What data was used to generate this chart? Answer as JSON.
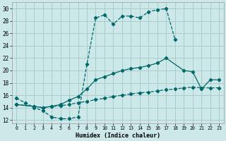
{
  "xlabel": "Humidex (Indice chaleur)",
  "bg_color": "#cce8e8",
  "grid_color": "#aacccc",
  "line_color": "#006868",
  "xlim": [
    -0.5,
    23.5
  ],
  "ylim": [
    11.5,
    31.0
  ],
  "xticks": [
    0,
    1,
    2,
    3,
    4,
    5,
    6,
    7,
    8,
    9,
    10,
    11,
    12,
    13,
    14,
    15,
    16,
    17,
    18,
    19,
    20,
    21,
    22,
    23
  ],
  "yticks": [
    12,
    14,
    16,
    18,
    20,
    22,
    24,
    26,
    28,
    30
  ],
  "curve1_x": [
    0,
    1,
    2,
    3,
    4,
    5,
    6,
    7,
    8,
    9,
    10,
    11,
    12,
    13,
    14,
    15,
    16,
    17,
    18
  ],
  "curve1_y": [
    15.5,
    14.8,
    14.0,
    13.5,
    12.5,
    12.2,
    12.2,
    12.5,
    21.0,
    28.5,
    29.0,
    27.5,
    28.8,
    28.8,
    28.5,
    29.5,
    29.8,
    30.0,
    25.0
  ],
  "curve2_x": [
    0,
    2,
    3,
    4,
    5,
    6,
    7,
    8,
    9,
    10,
    11,
    12,
    13,
    14,
    15,
    16,
    17,
    19,
    20,
    21,
    22,
    23
  ],
  "curve2_y": [
    14.5,
    14.2,
    14.0,
    14.2,
    14.5,
    15.2,
    15.8,
    17.0,
    18.5,
    19.0,
    19.5,
    20.0,
    20.3,
    20.5,
    20.8,
    21.2,
    22.0,
    20.0,
    19.8,
    17.0,
    18.5,
    18.5
  ],
  "curve3_x": [
    0,
    2,
    3,
    4,
    5,
    6,
    7,
    8,
    9,
    10,
    11,
    12,
    13,
    14,
    15,
    16,
    17,
    18,
    19,
    20,
    21,
    22,
    23
  ],
  "curve3_y": [
    14.5,
    14.2,
    14.0,
    14.2,
    14.3,
    14.5,
    14.8,
    15.0,
    15.3,
    15.5,
    15.8,
    16.0,
    16.2,
    16.4,
    16.5,
    16.7,
    16.9,
    17.0,
    17.2,
    17.3,
    17.2,
    17.2,
    17.2
  ]
}
